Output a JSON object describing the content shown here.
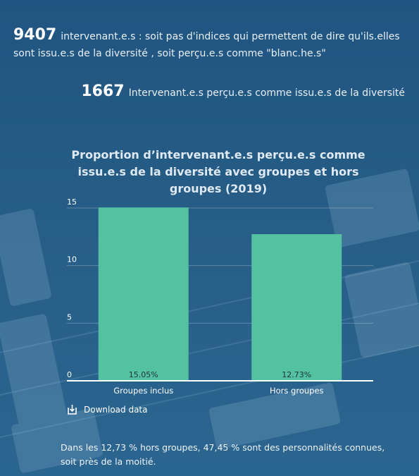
{
  "stats": [
    {
      "number": "9407",
      "text": "intervenant.e.s : soit pas d'indices qui permettent de dire qu'ils.elles sont issu.e.s de la diversité , soit perçu.e.s comme \"blanc.he.s\""
    },
    {
      "number": "1667",
      "text": "Intervenant.e.s perçu.e.s comme issu.e.s de la diversité"
    }
  ],
  "chart_data": {
    "type": "bar",
    "title": "Proportion d’intervenant.e.s perçu.e.s comme issu.e.s de la diversité avec groupes et hors groupes (2019)",
    "categories": [
      "Groupes inclus",
      "Hors groupes"
    ],
    "values": [
      15.05,
      12.73
    ],
    "data_labels": [
      "15.05%",
      "12.73%"
    ],
    "ylim": [
      0,
      15
    ],
    "yticks": [
      "0",
      "5",
      "10",
      "15"
    ],
    "grid": true,
    "bar_color": "#54c2a0"
  },
  "download": {
    "label": "Download data",
    "icon": "download-icon"
  },
  "footnote": "Dans les 12,73 % hors groupes, 47,45 % sont des personnalités connues, soit près de la moitié."
}
